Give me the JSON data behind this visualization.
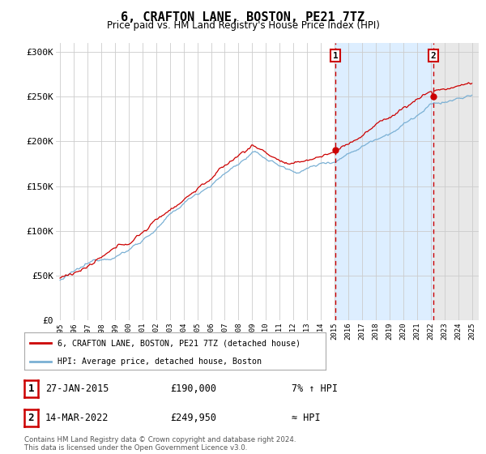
{
  "title": "6, CRAFTON LANE, BOSTON, PE21 7TZ",
  "subtitle": "Price paid vs. HM Land Registry's House Price Index (HPI)",
  "xlim": [
    1994.7,
    2025.5
  ],
  "ylim": [
    0,
    310000
  ],
  "yticks": [
    0,
    50000,
    100000,
    150000,
    200000,
    250000,
    300000
  ],
  "ytick_labels": [
    "£0",
    "£50K",
    "£100K",
    "£150K",
    "£200K",
    "£250K",
    "£300K"
  ],
  "xticks": [
    1995,
    1996,
    1997,
    1998,
    1999,
    2000,
    2001,
    2002,
    2003,
    2004,
    2005,
    2006,
    2007,
    2008,
    2009,
    2010,
    2011,
    2012,
    2013,
    2014,
    2015,
    2016,
    2017,
    2018,
    2019,
    2020,
    2021,
    2022,
    2023,
    2024,
    2025
  ],
  "red_line_color": "#cc0000",
  "blue_line_color": "#7ab0d4",
  "shaded_between_color": "#ddeeff",
  "shaded_after_color": "#e8e8e8",
  "marker1_x": 2015.07,
  "marker1_y": 190000,
  "marker1_label": "1",
  "marker1_date": "27-JAN-2015",
  "marker1_price": "£190,000",
  "marker1_note": "7% ↑ HPI",
  "marker2_x": 2022.2,
  "marker2_y": 249950,
  "marker2_label": "2",
  "marker2_date": "14-MAR-2022",
  "marker2_price": "£249,950",
  "marker2_note": "≈ HPI",
  "legend_line1": "6, CRAFTON LANE, BOSTON, PE21 7TZ (detached house)",
  "legend_line2": "HPI: Average price, detached house, Boston",
  "footer": "Contains HM Land Registry data © Crown copyright and database right 2024.\nThis data is licensed under the Open Government Licence v3.0.",
  "background_color": "#ffffff",
  "grid_color": "#cccccc"
}
